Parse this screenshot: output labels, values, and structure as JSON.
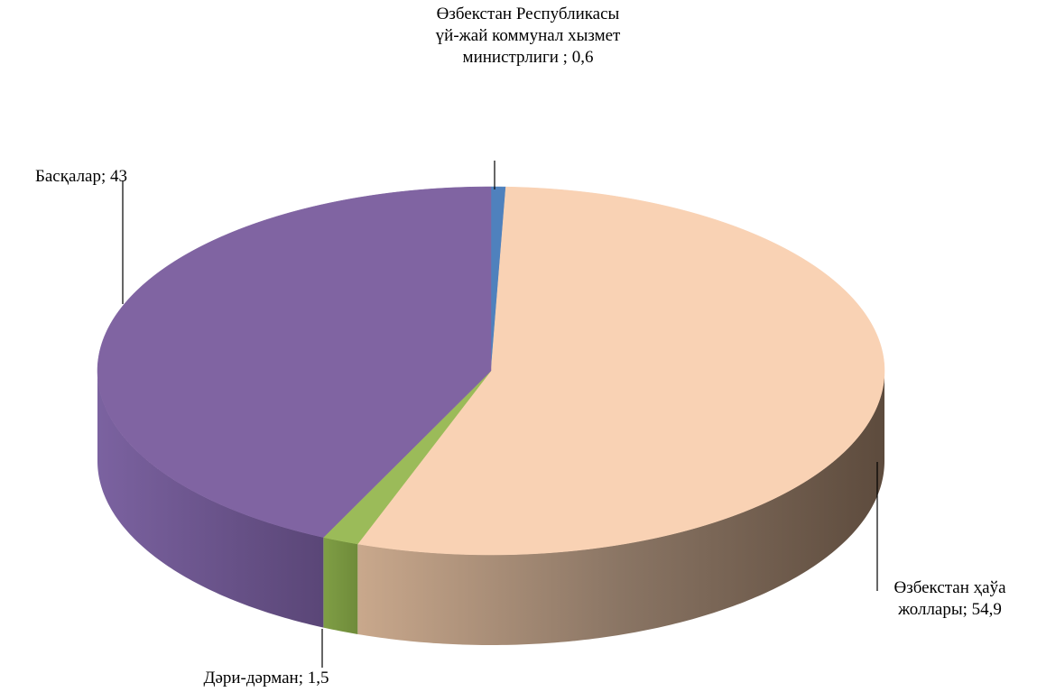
{
  "chart_data": {
    "type": "pie3d",
    "categories": [
      "Өзбекстан Республикасы үй-жай коммунал хызмет министрлиги ",
      "Өзбекстан ҳаўа жоллары",
      "Дәри-дәрман",
      "Басқалар"
    ],
    "values": [
      0.6,
      54.9,
      1.5,
      43
    ],
    "value_labels": [
      "0,6",
      "54,9",
      "1,5",
      "43"
    ],
    "label_separator": "; ",
    "colors": [
      "#4f81bd",
      "#f9d2b4",
      "#9bbb59",
      "#8064a2"
    ]
  }
}
